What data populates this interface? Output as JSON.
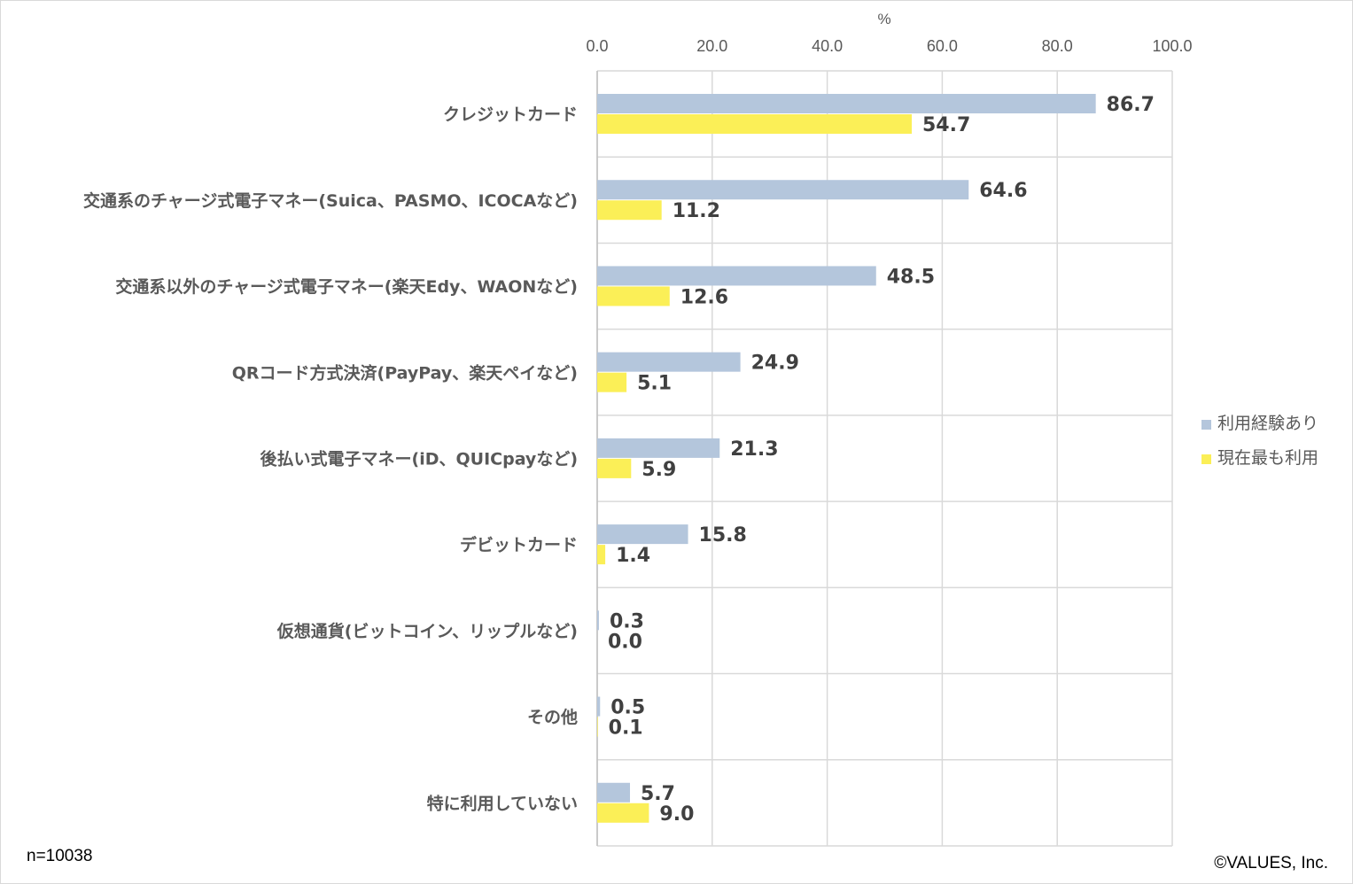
{
  "chart_data": {
    "type": "bar",
    "orientation": "horizontal",
    "unit_label": "%",
    "categories": [
      "クレジットカード",
      "交通系のチャージ式電子マネー(Suica、PASMO、ICOCAなど)",
      "交通系以外のチャージ式電子マネー(楽天Edy、WAONなど)",
      "QRコード方式決済(PayPay、楽天ペイなど)",
      "後払い式電子マネー(iD、QUICpayなど)",
      "デビットカード",
      "仮想通貨(ビットコイン、リップルなど)",
      "その他",
      "特に利用していない"
    ],
    "series": [
      {
        "name": "利用経験あり",
        "color": "#b4c6dc",
        "values": [
          86.7,
          64.6,
          48.5,
          24.9,
          21.3,
          15.8,
          0.3,
          0.5,
          5.7
        ]
      },
      {
        "name": "現在最も利用",
        "color": "#fbef57",
        "values": [
          54.7,
          11.2,
          12.6,
          5.1,
          5.9,
          1.4,
          0.0,
          0.1,
          9.0
        ]
      }
    ],
    "xlim": [
      0,
      100
    ],
    "xticks": [
      "0.0",
      "20.0",
      "40.0",
      "60.0",
      "80.0",
      "100.0"
    ],
    "grid": true,
    "legend_position": "right"
  },
  "footer": {
    "sample_size": "n=10038",
    "copyright": "©VALUES, Inc."
  }
}
